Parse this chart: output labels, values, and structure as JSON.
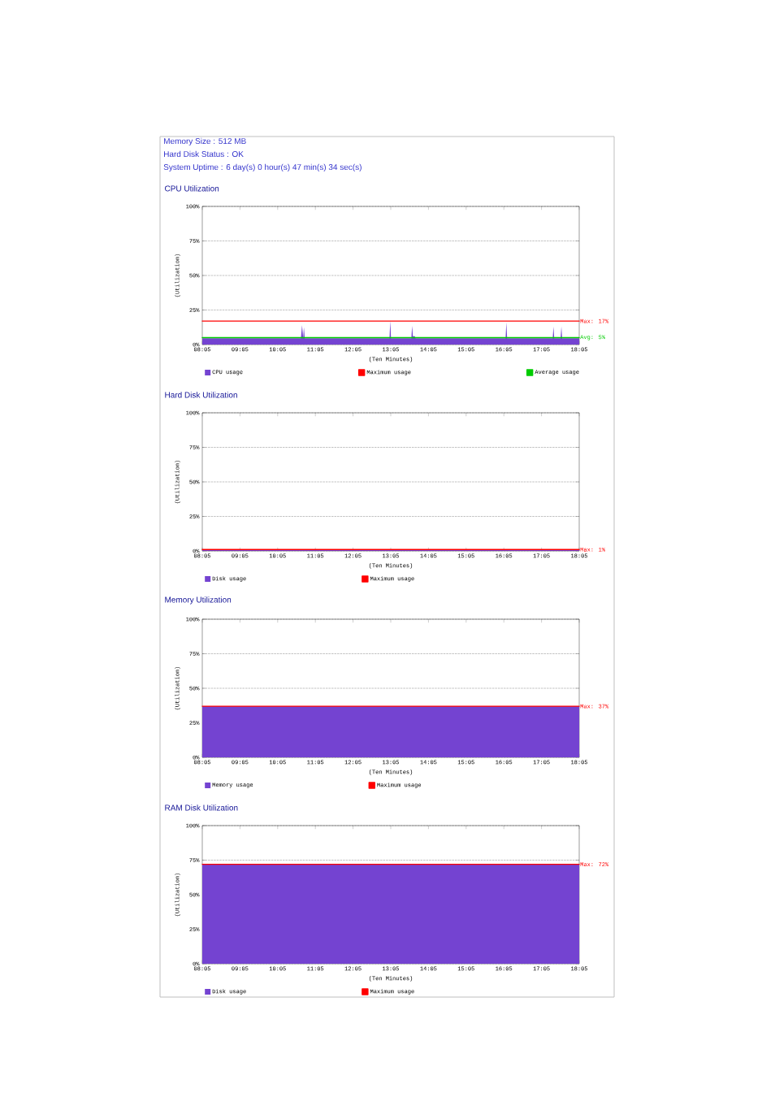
{
  "chart_data": [
    {
      "type": "area",
      "title": "CPU Utilization",
      "xlabel": "(Ten Minutes)",
      "ylabel": "(Utilization)",
      "annotations": [
        "Memory Size : 512 MB",
        "Hard Disk Status : OK",
        "System Uptime : 6 day(s) 0 hour(s) 47 min(s) 34 sec(s)",
        "Max: 17%",
        "Avg: 5%"
      ],
      "xlim": [
        8.0833,
        18.0833
      ],
      "xticks": [
        {
          "value": 8.0833,
          "label": "08:05"
        },
        {
          "value": 9.0833,
          "label": "09:05"
        },
        {
          "value": 10.0833,
          "label": "10:05"
        },
        {
          "value": 11.0833,
          "label": "11:05"
        },
        {
          "value": 12.0833,
          "label": "12:05"
        },
        {
          "value": 13.0833,
          "label": "13:05"
        },
        {
          "value": 14.0833,
          "label": "14:05"
        },
        {
          "value": 15.0833,
          "label": "15:05"
        },
        {
          "value": 16.0833,
          "label": "16:05"
        },
        {
          "value": 17.0833,
          "label": "17:05"
        },
        {
          "value": 18.0833,
          "label": "18:05"
        }
      ],
      "ylim": [
        0,
        100
      ],
      "yticks": [
        {
          "value": 0,
          "label": "0%"
        },
        {
          "value": 25,
          "label": "25%"
        },
        {
          "value": 50,
          "label": "50%"
        },
        {
          "value": 75,
          "label": "75%"
        },
        {
          "value": 100,
          "label": "100%"
        }
      ],
      "grid": "y",
      "legend": "bottom",
      "series": [
        {
          "name": "CPU usage",
          "color": "#7443d1",
          "x": [
            8.0833,
            10.7,
            10.73,
            10.76,
            10.78,
            10.8,
            13.05,
            13.07,
            13.09,
            13.63,
            13.65,
            13.67,
            13.72,
            13.74,
            16.13,
            16.15,
            16.17,
            17.38,
            17.4,
            17.42,
            17.59,
            17.61,
            17.63,
            18.0833
          ],
          "values": [
            4.5,
            4.5,
            14,
            4.5,
            12.5,
            4.5,
            4.5,
            17,
            4.5,
            4.5,
            13.5,
            6,
            6,
            4.5,
            4.5,
            16,
            4.5,
            4.5,
            13,
            4.5,
            4.5,
            13,
            4.5,
            4.5
          ]
        },
        {
          "name": "Maximum usage",
          "type": "line",
          "color": "#ff0000",
          "x": [
            8.0833,
            18.0833
          ],
          "values": [
            17,
            17
          ]
        },
        {
          "name": "Average usage",
          "type": "line",
          "color": "#00cc00",
          "x": [
            8.0833,
            18.0833
          ],
          "values": [
            5,
            5
          ]
        }
      ]
    },
    {
      "type": "area",
      "title": "Hard Disk Utilization",
      "xlabel": "(Ten Minutes)",
      "ylabel": "(Utilization)",
      "annotations": [
        "Max: 1%"
      ],
      "xlim": [
        8.0833,
        18.0833
      ],
      "xticks": [
        {
          "value": 8.0833,
          "label": "08:05"
        },
        {
          "value": 9.0833,
          "label": "09:05"
        },
        {
          "value": 10.0833,
          "label": "10:05"
        },
        {
          "value": 11.0833,
          "label": "11:05"
        },
        {
          "value": 12.0833,
          "label": "12:05"
        },
        {
          "value": 13.0833,
          "label": "13:05"
        },
        {
          "value": 14.0833,
          "label": "14:05"
        },
        {
          "value": 15.0833,
          "label": "15:05"
        },
        {
          "value": 16.0833,
          "label": "16:05"
        },
        {
          "value": 17.0833,
          "label": "17:05"
        },
        {
          "value": 18.0833,
          "label": "18:05"
        }
      ],
      "ylim": [
        0,
        100
      ],
      "yticks": [
        {
          "value": 0,
          "label": "0%"
        },
        {
          "value": 25,
          "label": "25%"
        },
        {
          "value": 50,
          "label": "50%"
        },
        {
          "value": 75,
          "label": "75%"
        },
        {
          "value": 100,
          "label": "100%"
        }
      ],
      "grid": "y",
      "legend": "bottom",
      "series": [
        {
          "name": "Disk usage",
          "color": "#7443d1",
          "x": [
            8.0833,
            18.0833
          ],
          "values": [
            1,
            1
          ]
        },
        {
          "name": "Maximum usage",
          "type": "line",
          "color": "#ff0000",
          "x": [
            8.0833,
            18.0833
          ],
          "values": [
            1,
            1
          ]
        }
      ]
    },
    {
      "type": "area",
      "title": "Memory Utilization",
      "xlabel": "(Ten Minutes)",
      "ylabel": "(Utilization)",
      "annotations": [
        "Max: 37%"
      ],
      "xlim": [
        8.0833,
        18.0833
      ],
      "xticks": [
        {
          "value": 8.0833,
          "label": "08:05"
        },
        {
          "value": 9.0833,
          "label": "09:05"
        },
        {
          "value": 10.0833,
          "label": "10:05"
        },
        {
          "value": 11.0833,
          "label": "11:05"
        },
        {
          "value": 12.0833,
          "label": "12:05"
        },
        {
          "value": 13.0833,
          "label": "13:05"
        },
        {
          "value": 14.0833,
          "label": "14:05"
        },
        {
          "value": 15.0833,
          "label": "15:05"
        },
        {
          "value": 16.0833,
          "label": "16:05"
        },
        {
          "value": 17.0833,
          "label": "17:05"
        },
        {
          "value": 18.0833,
          "label": "18:05"
        }
      ],
      "ylim": [
        0,
        100
      ],
      "yticks": [
        {
          "value": 0,
          "label": "0%"
        },
        {
          "value": 25,
          "label": "25%"
        },
        {
          "value": 50,
          "label": "50%"
        },
        {
          "value": 75,
          "label": "75%"
        },
        {
          "value": 100,
          "label": "100%"
        }
      ],
      "grid": "y",
      "legend": "bottom",
      "series": [
        {
          "name": "Memory usage",
          "color": "#7443d1",
          "x": [
            8.0833,
            18.0833
          ],
          "values": [
            37,
            37
          ]
        },
        {
          "name": "Maximum usage",
          "type": "line",
          "color": "#ff0000",
          "x": [
            8.0833,
            18.0833
          ],
          "values": [
            37,
            37
          ]
        }
      ]
    },
    {
      "type": "area",
      "title": "RAM Disk Utilization",
      "xlabel": "(Ten Minutes)",
      "ylabel": "(Utilization)",
      "annotations": [
        "Max: 72%"
      ],
      "xlim": [
        8.0833,
        18.0833
      ],
      "xticks": [
        {
          "value": 8.0833,
          "label": "08:05"
        },
        {
          "value": 9.0833,
          "label": "09:05"
        },
        {
          "value": 10.0833,
          "label": "10:05"
        },
        {
          "value": 11.0833,
          "label": "11:05"
        },
        {
          "value": 12.0833,
          "label": "12:05"
        },
        {
          "value": 13.0833,
          "label": "13:05"
        },
        {
          "value": 14.0833,
          "label": "14:05"
        },
        {
          "value": 15.0833,
          "label": "15:05"
        },
        {
          "value": 16.0833,
          "label": "16:05"
        },
        {
          "value": 17.0833,
          "label": "17:05"
        },
        {
          "value": 18.0833,
          "label": "18:05"
        }
      ],
      "ylim": [
        0,
        100
      ],
      "yticks": [
        {
          "value": 0,
          "label": "0%"
        },
        {
          "value": 25,
          "label": "25%"
        },
        {
          "value": 50,
          "label": "50%"
        },
        {
          "value": 75,
          "label": "75%"
        },
        {
          "value": 100,
          "label": "100%"
        }
      ],
      "grid": "y",
      "legend": "bottom",
      "series": [
        {
          "name": "Disk usage",
          "color": "#7443d1",
          "x": [
            8.0833,
            18.0833
          ],
          "values": [
            72,
            72
          ]
        },
        {
          "name": "Maximum usage",
          "type": "line",
          "color": "#ff0000",
          "x": [
            8.0833,
            18.0833
          ],
          "values": [
            72,
            72
          ]
        }
      ]
    }
  ]
}
